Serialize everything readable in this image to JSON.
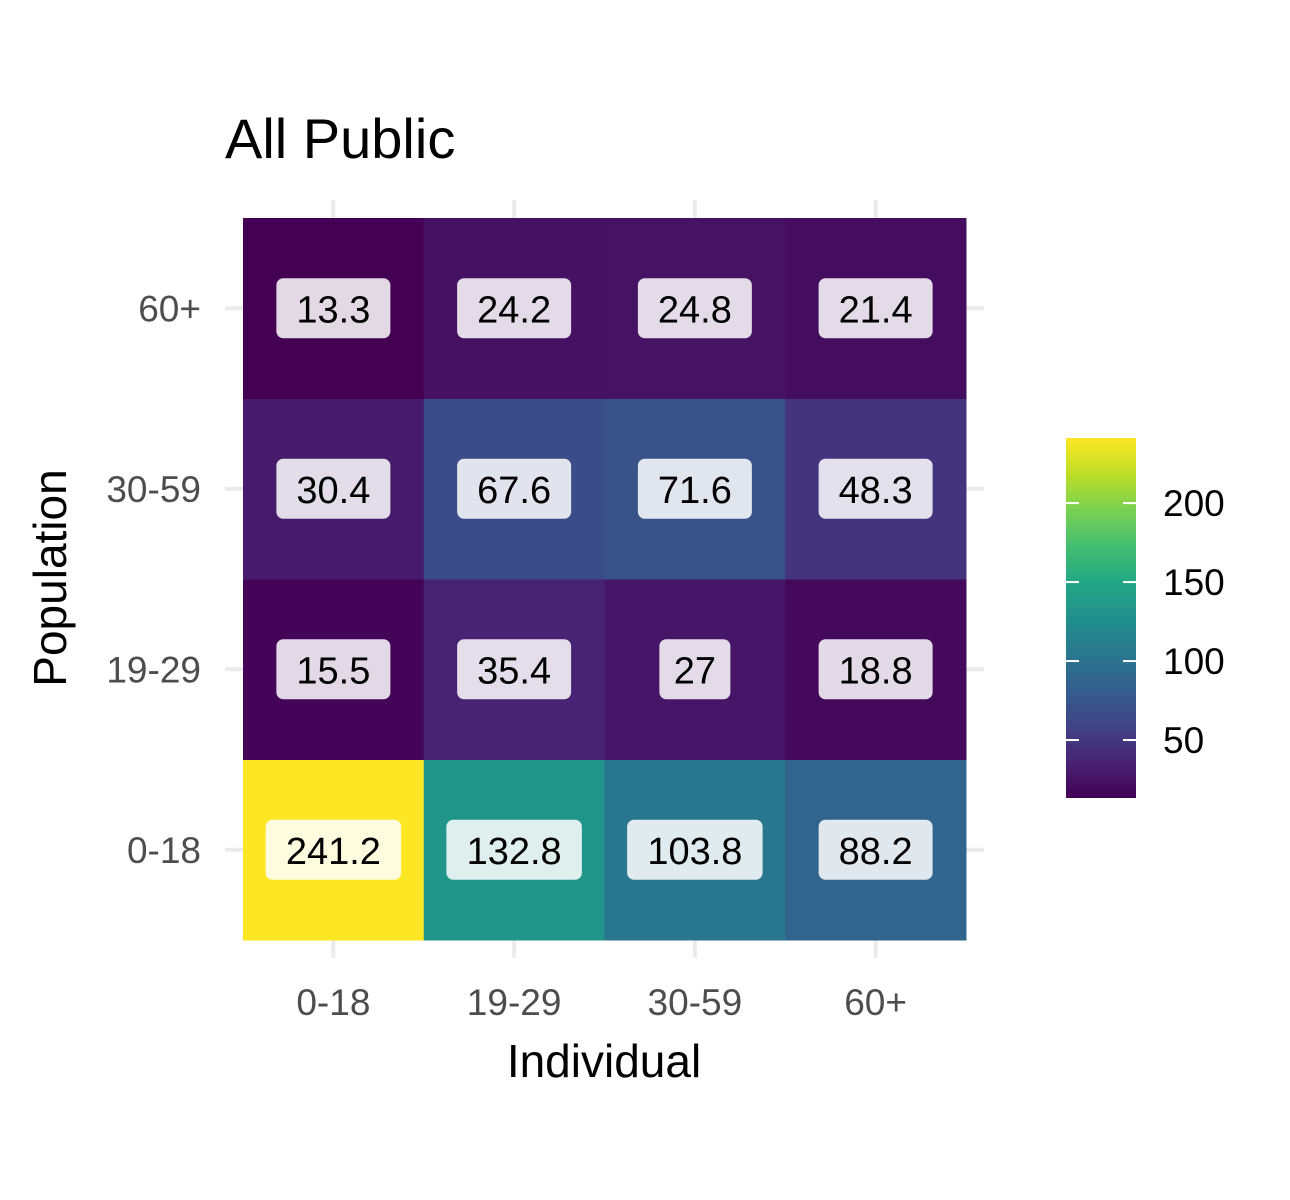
{
  "chart_data": {
    "type": "heatmap",
    "title": "All Public",
    "xlabel": "Individual",
    "ylabel": "Population",
    "x_categories": [
      "0-18",
      "19-29",
      "30-59",
      "60+"
    ],
    "y_categories": [
      "0-18",
      "19-29",
      "30-59",
      "60+"
    ],
    "values": [
      [
        241.2,
        132.8,
        103.8,
        88.2
      ],
      [
        15.5,
        35.4,
        27,
        18.8
      ],
      [
        30.4,
        67.6,
        71.6,
        48.3
      ],
      [
        13.3,
        24.2,
        24.8,
        21.4
      ]
    ],
    "colorscale": "viridis",
    "colorbar_range": [
      13.3,
      241.2
    ],
    "colorbar_ticks": [
      50,
      100,
      150,
      200
    ],
    "grid": true,
    "legend_position": "right"
  }
}
